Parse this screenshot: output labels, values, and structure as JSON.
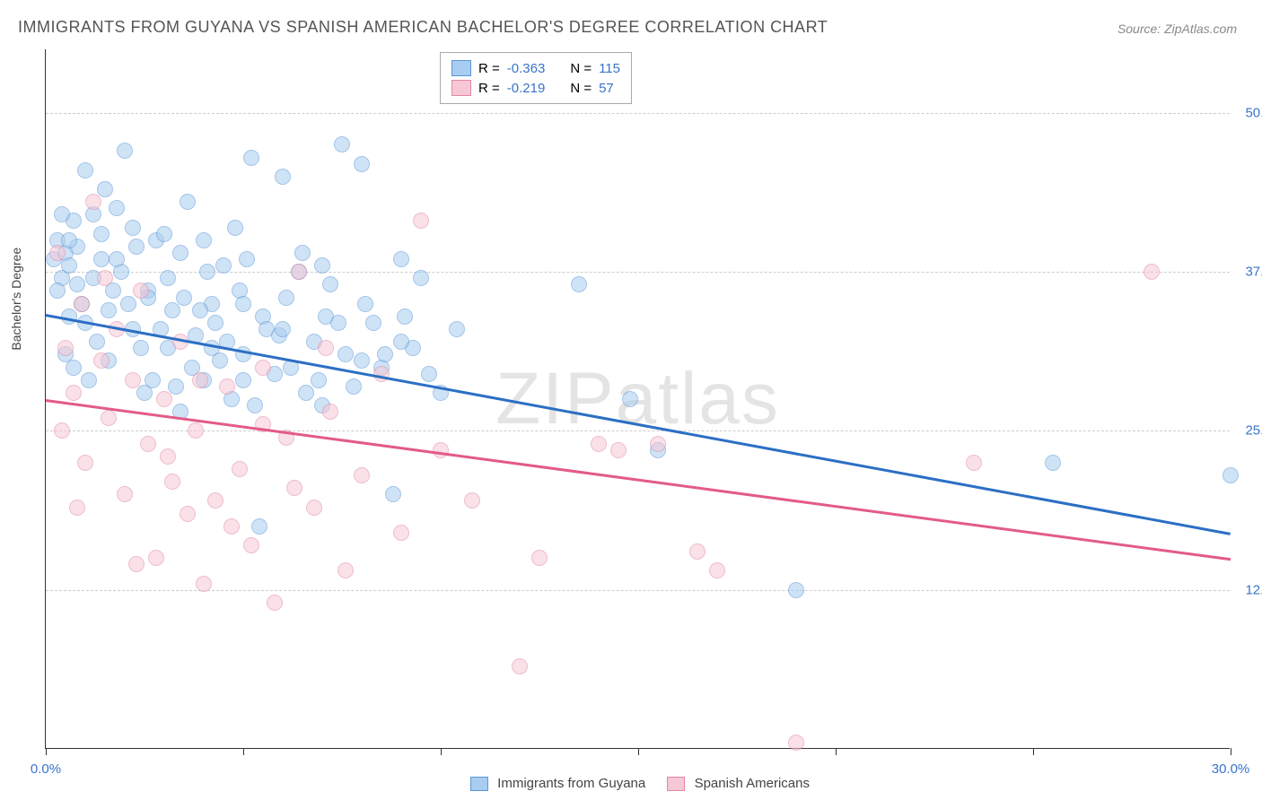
{
  "title": "IMMIGRANTS FROM GUYANA VS SPANISH AMERICAN BACHELOR'S DEGREE CORRELATION CHART",
  "source_label": "Source: ZipAtlas.com",
  "y_axis_label": "Bachelor's Degree",
  "watermark_prefix": "ZIP",
  "watermark_suffix": "atlas",
  "chart": {
    "type": "scatter",
    "xlim": [
      0,
      30
    ],
    "ylim": [
      0,
      55
    ],
    "x_ticks": [
      0,
      5,
      10,
      15,
      20,
      25,
      30
    ],
    "x_tick_labels": {
      "0": "0.0%",
      "30": "30.0%"
    },
    "y_gridlines": [
      12.5,
      25.0,
      37.5,
      50.0
    ],
    "y_tick_labels": [
      "12.5%",
      "25.0%",
      "37.5%",
      "50.0%"
    ],
    "grid_color": "#cccccc",
    "axis_color": "#333333",
    "tick_label_color": "#3874c9",
    "background_color": "#ffffff",
    "point_radius": 9,
    "point_opacity": 0.55,
    "series": [
      {
        "name": "Immigrants from Guyana",
        "color_fill": "#a9cdf0",
        "color_stroke": "#5b96d6",
        "R": "-0.363",
        "N": "115",
        "trend": {
          "x1": 0,
          "y1": 34.2,
          "x2": 30,
          "y2": 17.0,
          "color": "#2b6fc4",
          "width": 2.5
        },
        "points": [
          [
            0.2,
            38.5
          ],
          [
            0.3,
            40.0
          ],
          [
            0.4,
            37.0
          ],
          [
            0.5,
            39.0
          ],
          [
            0.6,
            38.0
          ],
          [
            0.7,
            41.5
          ],
          [
            0.8,
            36.5
          ],
          [
            0.5,
            31.0
          ],
          [
            0.6,
            34.0
          ],
          [
            0.7,
            30.0
          ],
          [
            1.0,
            45.5
          ],
          [
            1.2,
            37.0
          ],
          [
            1.3,
            32.0
          ],
          [
            1.4,
            38.5
          ],
          [
            1.5,
            44.0
          ],
          [
            1.6,
            30.5
          ],
          [
            1.8,
            42.5
          ],
          [
            2.0,
            47.0
          ],
          [
            2.1,
            35.0
          ],
          [
            2.2,
            33.0
          ],
          [
            2.3,
            39.5
          ],
          [
            2.5,
            28.0
          ],
          [
            2.6,
            36.0
          ],
          [
            2.8,
            40.0
          ],
          [
            3.0,
            40.5
          ],
          [
            3.1,
            31.5
          ],
          [
            3.2,
            34.5
          ],
          [
            3.4,
            26.5
          ],
          [
            3.5,
            35.5
          ],
          [
            3.6,
            43.0
          ],
          [
            3.8,
            32.5
          ],
          [
            4.0,
            29.0
          ],
          [
            4.1,
            37.5
          ],
          [
            4.3,
            33.5
          ],
          [
            4.5,
            38.0
          ],
          [
            4.7,
            27.5
          ],
          [
            4.8,
            41.0
          ],
          [
            5.0,
            31.0
          ],
          [
            5.2,
            46.5
          ],
          [
            5.4,
            17.5
          ],
          [
            5.5,
            34.0
          ],
          [
            5.8,
            29.5
          ],
          [
            6.0,
            45.0
          ],
          [
            6.2,
            30.0
          ],
          [
            6.5,
            39.0
          ],
          [
            6.8,
            32.0
          ],
          [
            7.0,
            27.0
          ],
          [
            7.2,
            36.5
          ],
          [
            7.5,
            47.5
          ],
          [
            7.8,
            28.5
          ],
          [
            8.0,
            46.0
          ],
          [
            8.3,
            33.5
          ],
          [
            8.5,
            30.0
          ],
          [
            8.8,
            20.0
          ],
          [
            9.0,
            38.5
          ],
          [
            9.3,
            31.5
          ],
          [
            9.5,
            37.0
          ],
          [
            10.0,
            28.0
          ],
          [
            10.4,
            33.0
          ],
          [
            13.5,
            36.5
          ],
          [
            14.8,
            27.5
          ],
          [
            15.5,
            23.5
          ],
          [
            19.0,
            12.5
          ],
          [
            25.5,
            22.5
          ],
          [
            30.0,
            21.5
          ],
          [
            1.0,
            33.5
          ],
          [
            1.1,
            29.0
          ],
          [
            1.7,
            36.0
          ],
          [
            2.4,
            31.5
          ],
          [
            2.9,
            33.0
          ],
          [
            3.3,
            28.5
          ],
          [
            3.7,
            30.0
          ],
          [
            4.2,
            35.0
          ],
          [
            4.6,
            32.0
          ],
          [
            5.1,
            38.5
          ],
          [
            5.6,
            33.0
          ],
          [
            6.1,
            35.5
          ],
          [
            6.6,
            28.0
          ],
          [
            7.1,
            34.0
          ],
          [
            7.6,
            31.0
          ],
          [
            0.9,
            35.0
          ],
          [
            1.4,
            40.5
          ],
          [
            1.9,
            37.5
          ],
          [
            2.7,
            29.0
          ],
          [
            3.9,
            34.5
          ],
          [
            4.4,
            30.5
          ],
          [
            4.9,
            36.0
          ],
          [
            5.3,
            27.0
          ],
          [
            5.9,
            32.5
          ],
          [
            6.4,
            37.5
          ],
          [
            6.9,
            29.0
          ],
          [
            7.4,
            33.5
          ],
          [
            8.1,
            35.0
          ],
          [
            8.6,
            31.0
          ],
          [
            9.1,
            34.0
          ],
          [
            9.7,
            29.5
          ],
          [
            0.4,
            42.0
          ],
          [
            0.8,
            39.5
          ],
          [
            1.6,
            34.5
          ],
          [
            2.2,
            41.0
          ],
          [
            3.1,
            37.0
          ],
          [
            4.0,
            40.0
          ],
          [
            5.0,
            35.0
          ],
          [
            6.0,
            33.0
          ],
          [
            7.0,
            38.0
          ],
          [
            8.0,
            30.5
          ],
          [
            9.0,
            32.0
          ],
          [
            0.3,
            36.0
          ],
          [
            0.6,
            40.0
          ],
          [
            1.2,
            42.0
          ],
          [
            1.8,
            38.5
          ],
          [
            2.6,
            35.5
          ],
          [
            3.4,
            39.0
          ],
          [
            4.2,
            31.5
          ],
          [
            5.0,
            29.0
          ]
        ]
      },
      {
        "name": "Spanish Americans",
        "color_fill": "#f6c7d4",
        "color_stroke": "#e388a5",
        "R": "-0.219",
        "N": "57",
        "trend": {
          "x1": 0,
          "y1": 27.5,
          "x2": 30,
          "y2": 15.0,
          "color": "#e35a8a",
          "width": 2.5
        },
        "points": [
          [
            0.3,
            39.0
          ],
          [
            0.5,
            31.5
          ],
          [
            0.7,
            28.0
          ],
          [
            0.9,
            35.0
          ],
          [
            1.0,
            22.5
          ],
          [
            1.2,
            43.0
          ],
          [
            1.4,
            30.5
          ],
          [
            1.6,
            26.0
          ],
          [
            1.8,
            33.0
          ],
          [
            2.0,
            20.0
          ],
          [
            2.2,
            29.0
          ],
          [
            2.4,
            36.0
          ],
          [
            2.6,
            24.0
          ],
          [
            2.8,
            15.0
          ],
          [
            3.0,
            27.5
          ],
          [
            3.2,
            21.0
          ],
          [
            3.4,
            32.0
          ],
          [
            3.6,
            18.5
          ],
          [
            3.8,
            25.0
          ],
          [
            4.0,
            13.0
          ],
          [
            4.3,
            19.5
          ],
          [
            4.6,
            28.5
          ],
          [
            4.9,
            22.0
          ],
          [
            5.2,
            16.0
          ],
          [
            5.5,
            30.0
          ],
          [
            5.8,
            11.5
          ],
          [
            6.1,
            24.5
          ],
          [
            6.4,
            37.5
          ],
          [
            6.8,
            19.0
          ],
          [
            7.2,
            26.5
          ],
          [
            7.6,
            14.0
          ],
          [
            8.0,
            21.5
          ],
          [
            8.5,
            29.5
          ],
          [
            9.0,
            17.0
          ],
          [
            9.5,
            41.5
          ],
          [
            10.0,
            23.5
          ],
          [
            10.8,
            19.5
          ],
          [
            12.0,
            6.5
          ],
          [
            12.5,
            15.0
          ],
          [
            14.0,
            24.0
          ],
          [
            14.5,
            23.5
          ],
          [
            15.5,
            24.0
          ],
          [
            16.5,
            15.5
          ],
          [
            17.0,
            14.0
          ],
          [
            19.0,
            0.5
          ],
          [
            23.5,
            22.5
          ],
          [
            28.0,
            37.5
          ],
          [
            0.4,
            25.0
          ],
          [
            0.8,
            19.0
          ],
          [
            1.5,
            37.0
          ],
          [
            2.3,
            14.5
          ],
          [
            3.1,
            23.0
          ],
          [
            3.9,
            29.0
          ],
          [
            4.7,
            17.5
          ],
          [
            5.5,
            25.5
          ],
          [
            6.3,
            20.5
          ],
          [
            7.1,
            31.5
          ]
        ]
      }
    ]
  },
  "legend_top": {
    "R_label": "R =",
    "N_label": "N ="
  },
  "bottom_legend": {
    "series1_label": "Immigrants from Guyana",
    "series2_label": "Spanish Americans"
  }
}
